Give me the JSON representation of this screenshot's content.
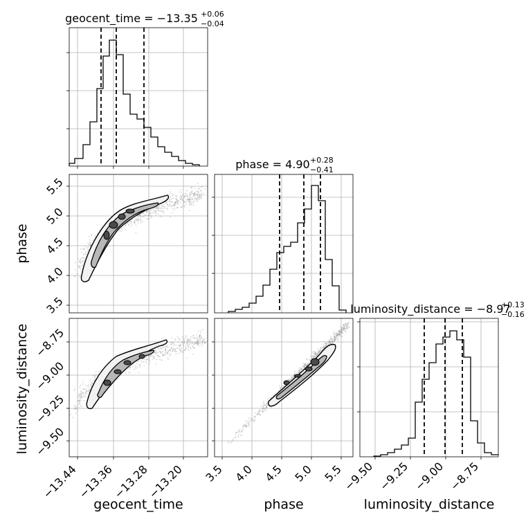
{
  "chart_data": {
    "type": "corner",
    "parameters": [
      "geocent_time",
      "phase",
      "luminosity_distance"
    ],
    "axis_labels": {
      "geocent_time": "geocent_time",
      "phase": "phase",
      "luminosity_distance": "luminosity_distance"
    },
    "titles": [
      {
        "param": "geocent_time",
        "prefix": "geocent_time = ",
        "value": "−13.35",
        "plus": "+0.06",
        "minus": "−0.04"
      },
      {
        "param": "phase",
        "prefix": "phase = ",
        "value": "4.90",
        "plus": "+0.28",
        "minus": "−0.41"
      },
      {
        "param": "luminosity_distance",
        "prefix": "luminosity_distance = ",
        "value": "−8.97",
        "plus": "+0.13",
        "minus": "−0.16"
      }
    ],
    "ranges": {
      "geocent_time": [
        -13.465,
        -13.17
      ],
      "phase": [
        3.4,
        5.72
      ],
      "luminosity_distance": [
        -9.57,
        -8.6
      ]
    },
    "ticks": {
      "geocent_time": {
        "values": [
          -13.44,
          -13.36,
          -13.28,
          -13.2
        ],
        "labels": [
          "−13.44",
          "−13.36",
          "−13.28",
          "−13.20"
        ]
      },
      "phase_x": {
        "values": [
          3.5,
          4.0,
          4.5,
          5.0,
          5.5
        ],
        "labels": [
          "3.5",
          "4.0",
          "4.5",
          "5.0",
          "5.5"
        ]
      },
      "phase_y": {
        "values": [
          3.5,
          4.0,
          4.5,
          5.0,
          5.5
        ],
        "labels": [
          "3.5",
          "4.0",
          "4.5",
          "5.0",
          "5.5"
        ]
      },
      "luminosity_distance_x": {
        "values": [
          -9.5,
          -9.25,
          -9.0,
          -8.75
        ],
        "labels": [
          "−9.50",
          "−9.25",
          "−9.00",
          "−8.75"
        ]
      },
      "luminosity_distance_y": {
        "values": [
          -9.5,
          -9.25,
          -9.0,
          -8.75
        ],
        "labels": [
          "−9.50",
          "−9.25",
          "−9.00",
          "−8.75"
        ]
      }
    },
    "quantiles": {
      "geocent_time": [
        -13.39,
        -13.35,
        -13.29
      ],
      "phase": [
        4.49,
        4.9,
        5.18
      ],
      "luminosity_distance": [
        -9.13,
        -8.97,
        -8.84
      ]
    },
    "histograms": {
      "geocent_time": {
        "edges": [
          -13.465,
          -13.4502,
          -13.4355,
          -13.4208,
          -13.406,
          -13.3912,
          -13.3765,
          -13.3618,
          -13.347,
          -13.3322,
          -13.3175,
          -13.3027,
          -13.288,
          -13.2732,
          -13.2585,
          -13.2437,
          -13.229,
          -13.2142,
          -13.1995,
          -13.1848,
          -13.17
        ],
        "counts": [
          0.02,
          0.06,
          0.13,
          0.21,
          0.36,
          0.64,
          0.87,
          1.0,
          0.84,
          0.53,
          0.34,
          0.31,
          0.2,
          0.15,
          0.11,
          0.08,
          0.05,
          0.03,
          0.01,
          0.0
        ]
      },
      "phase": {
        "edges": [
          3.4,
          3.516,
          3.632,
          3.748,
          3.864,
          3.98,
          4.096,
          4.212,
          4.328,
          4.444,
          4.56,
          4.676,
          4.792,
          4.908,
          5.024,
          5.14,
          5.256,
          5.372,
          5.488,
          5.604,
          5.72
        ],
        "counts": [
          0.0,
          0.0,
          0.01,
          0.02,
          0.04,
          0.06,
          0.1,
          0.14,
          0.21,
          0.38,
          0.44,
          0.6,
          0.69,
          0.73,
          1.0,
          0.87,
          0.38,
          0.22,
          0.02,
          0.0
        ]
      },
      "luminosity_distance": {
        "edges": [
          -9.57,
          -9.5215,
          -9.473,
          -9.4245,
          -9.376,
          -9.3275,
          -9.279,
          -9.2305,
          -9.182,
          -9.1335,
          -9.085,
          -9.0365,
          -8.988,
          -8.9395,
          -8.891,
          -8.8425,
          -8.794,
          -8.7455,
          -8.697,
          -8.6485,
          -8.6
        ],
        "counts": [
          0.0,
          0.01,
          0.02,
          0.05,
          0.07,
          0.13,
          0.21,
          0.41,
          0.66,
          0.8,
          0.89,
          0.94,
          1.0,
          0.91,
          0.74,
          0.42,
          0.21,
          0.11,
          0.05,
          0.02
        ]
      }
    },
    "correlations": {
      "phase_vs_geocent_time": "positive, curved (concave down)",
      "luminosity_distance_vs_geocent_time": "positive, curved (concave down)",
      "luminosity_distance_vs_phase": "strong positive, nearly linear"
    },
    "colors": {
      "lines": "#000000",
      "scatter": "#8c8c8c",
      "grid": "#b0b0b0",
      "contour_fill_light": "#f2f2f2",
      "contour_fill_mid": "#b8b8b8",
      "contour_fill_dark": "#4a4a4a"
    }
  }
}
